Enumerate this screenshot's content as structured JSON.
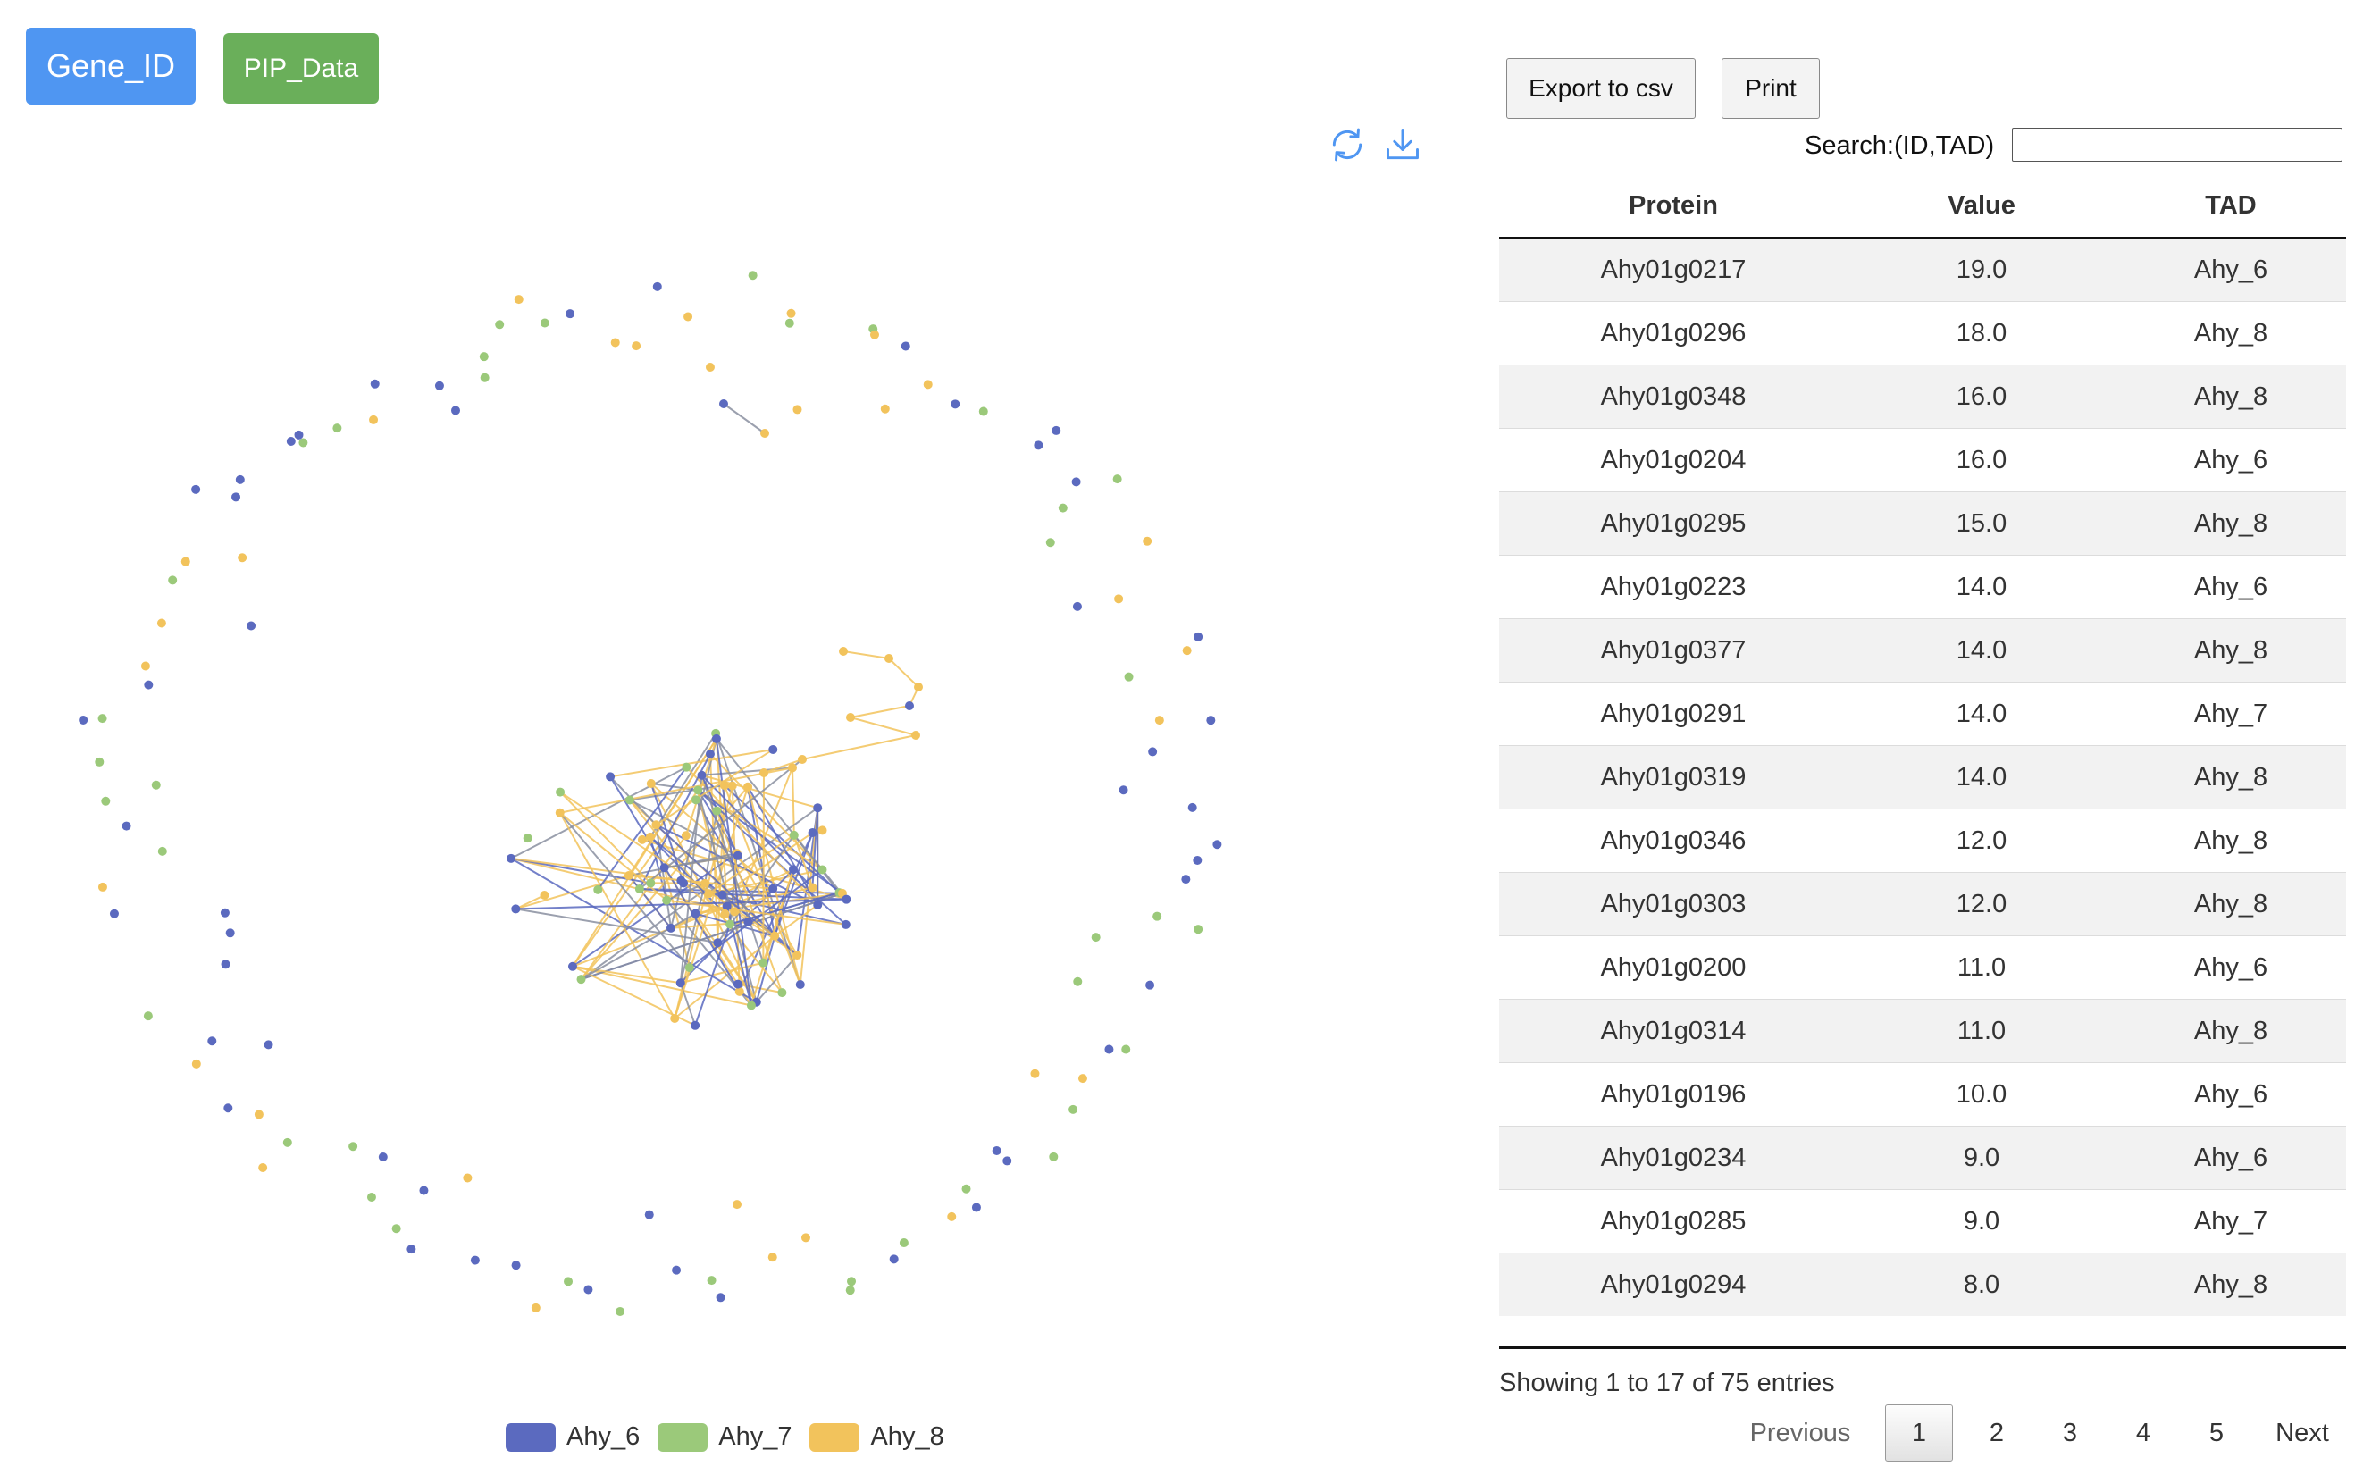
{
  "buttons": {
    "gene_id": "Gene_ID",
    "pip_data": "PIP_Data",
    "export": "Export to csv",
    "print": "Print"
  },
  "search": {
    "label": "Search:(ID,TAD)",
    "value": ""
  },
  "colors": {
    "Ahy_6": "#5b6abf",
    "Ahy_7": "#9bc97a",
    "Ahy_8": "#f2c35c",
    "edge_grey": "#8a8fa0"
  },
  "legend": [
    {
      "name": "Ahy_6",
      "color": "#5b6abf"
    },
    {
      "name": "Ahy_7",
      "color": "#9bc97a"
    },
    {
      "name": "Ahy_8",
      "color": "#f2c35c"
    }
  ],
  "toolbar_icons": [
    "refresh-icon",
    "download-icon"
  ],
  "table": {
    "headers": [
      "Protein",
      "Value",
      "TAD"
    ],
    "rows": [
      [
        "Ahy01g0217",
        "19.0",
        "Ahy_6"
      ],
      [
        "Ahy01g0296",
        "18.0",
        "Ahy_8"
      ],
      [
        "Ahy01g0348",
        "16.0",
        "Ahy_8"
      ],
      [
        "Ahy01g0204",
        "16.0",
        "Ahy_6"
      ],
      [
        "Ahy01g0295",
        "15.0",
        "Ahy_8"
      ],
      [
        "Ahy01g0223",
        "14.0",
        "Ahy_6"
      ],
      [
        "Ahy01g0377",
        "14.0",
        "Ahy_8"
      ],
      [
        "Ahy01g0291",
        "14.0",
        "Ahy_7"
      ],
      [
        "Ahy01g0319",
        "14.0",
        "Ahy_8"
      ],
      [
        "Ahy01g0346",
        "12.0",
        "Ahy_8"
      ],
      [
        "Ahy01g0303",
        "12.0",
        "Ahy_8"
      ],
      [
        "Ahy01g0200",
        "11.0",
        "Ahy_6"
      ],
      [
        "Ahy01g0314",
        "11.0",
        "Ahy_8"
      ],
      [
        "Ahy01g0196",
        "10.0",
        "Ahy_6"
      ],
      [
        "Ahy01g0234",
        "9.0",
        "Ahy_6"
      ],
      [
        "Ahy01g0285",
        "9.0",
        "Ahy_7"
      ],
      [
        "Ahy01g0294",
        "8.0",
        "Ahy_8"
      ]
    ]
  },
  "info": "Showing 1 to 17 of 75 entries",
  "pagination": {
    "previous": "Previous",
    "pages": [
      "1",
      "2",
      "3",
      "4",
      "5"
    ],
    "current": "1",
    "next": "Next"
  }
}
